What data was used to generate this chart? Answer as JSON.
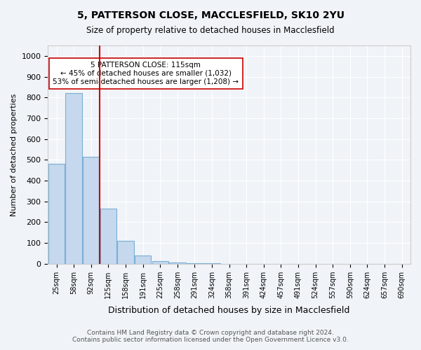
{
  "title": "5, PATTERSON CLOSE, MACCLESFIELD, SK10 2YU",
  "subtitle": "Size of property relative to detached houses in Macclesfield",
  "xlabel": "Distribution of detached houses by size in Macclesfield",
  "ylabel": "Number of detached properties",
  "footer_line1": "Contains HM Land Registry data © Crown copyright and database right 2024.",
  "footer_line2": "Contains public sector information licensed under the Open Government Licence v3.0.",
  "bin_labels": [
    "25sqm",
    "58sqm",
    "92sqm",
    "125sqm",
    "158sqm",
    "191sqm",
    "225sqm",
    "258sqm",
    "291sqm",
    "324sqm",
    "358sqm",
    "391sqm",
    "424sqm",
    "457sqm",
    "491sqm",
    "524sqm",
    "557sqm",
    "590sqm",
    "624sqm",
    "657sqm",
    "690sqm"
  ],
  "bar_values": [
    480,
    820,
    515,
    265,
    110,
    40,
    12,
    5,
    2,
    1,
    0,
    0,
    0,
    0,
    0,
    0,
    0,
    0,
    0,
    0,
    0
  ],
  "bar_color": "#c5d8ed",
  "bar_edge_color": "#7aaed6",
  "property_line_x": 2.5,
  "property_line_color": "#cc0000",
  "ylim": [
    0,
    1050
  ],
  "yticks": [
    0,
    100,
    200,
    300,
    400,
    500,
    600,
    700,
    800,
    900,
    1000
  ],
  "annotation_text": "5 PATTERSON CLOSE: 115sqm\n← 45% of detached houses are smaller (1,032)\n53% of semi-detached houses are larger (1,208) →",
  "annotation_box_color": "#ffffff",
  "annotation_border_color": "#cc0000",
  "background_color": "#f0f4f8",
  "grid_color": "#ffffff"
}
